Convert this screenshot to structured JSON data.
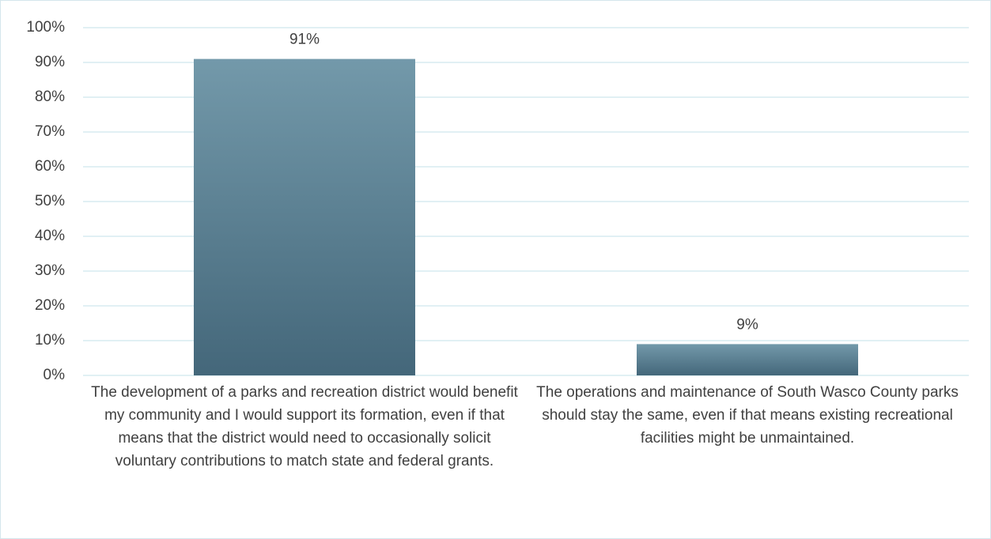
{
  "chart_data": {
    "type": "bar",
    "categories": [
      "The development of a parks and recreation district would benefit my community and I would support its formation, even if that means that the district would need to occasionally solicit voluntary contributions to match state and federal grants.",
      "The operations and maintenance of South Wasco County parks should stay the same, even if that means existing recreational facilities might be unmaintained."
    ],
    "values": [
      91,
      9
    ],
    "value_labels": [
      "91%",
      "9%"
    ],
    "color": "#5a7f91",
    "ylim": [
      0,
      100
    ],
    "yticks": [
      {
        "value": 0,
        "label": "0%"
      },
      {
        "value": 10,
        "label": "10%"
      },
      {
        "value": 20,
        "label": "20%"
      },
      {
        "value": 30,
        "label": "30%"
      },
      {
        "value": 40,
        "label": "40%"
      },
      {
        "value": 50,
        "label": "50%"
      },
      {
        "value": 60,
        "label": "60%"
      },
      {
        "value": 70,
        "label": "70%"
      },
      {
        "value": 80,
        "label": "80%"
      },
      {
        "value": 90,
        "label": "90%"
      },
      {
        "value": 100,
        "label": "100%"
      }
    ],
    "grid": true
  }
}
